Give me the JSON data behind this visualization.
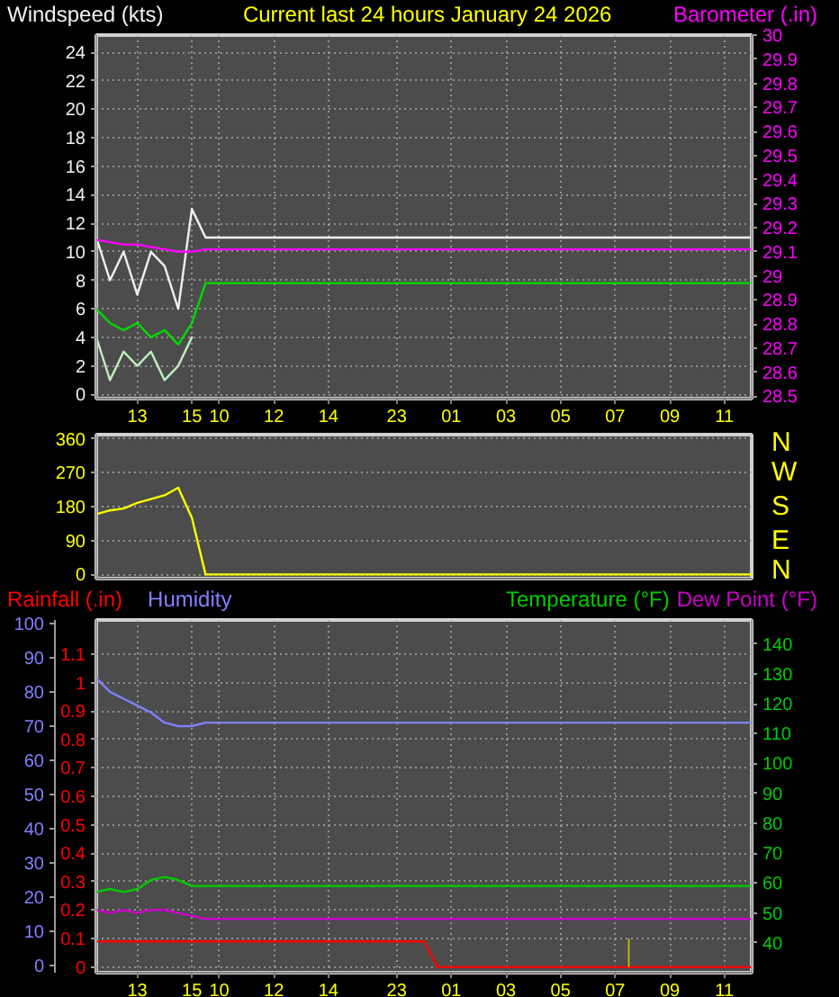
{
  "chart_data": [
    {
      "type": "line",
      "title": "Current last 24 hours January 24 2026",
      "ylabel": "Windspeed (kts)",
      "y2label": "Barometer (.in)",
      "categories": [
        null,
        null,
        null,
        "13",
        null,
        null,
        null,
        "15",
        null,
        "10",
        null,
        null,
        null,
        "12",
        null,
        null,
        null,
        "14",
        null,
        null,
        null,
        null,
        "23",
        null,
        null,
        null,
        "01",
        null,
        null,
        null,
        "03",
        null,
        null,
        null,
        "05",
        null,
        null,
        null,
        "07",
        null,
        null,
        null,
        "09",
        null,
        null,
        null,
        "11",
        null,
        null
      ],
      "ylim": [
        -0.3,
        25.2
      ],
      "yticks": [
        0,
        2,
        4,
        6,
        8,
        10,
        12,
        14,
        16,
        18,
        20,
        22,
        24
      ],
      "y2lim": [
        28.49,
        30.0
      ],
      "y2ticks": [
        28.5,
        28.6,
        28.7,
        28.8,
        28.9,
        29,
        29.1,
        29.2,
        29.3,
        29.4,
        29.5,
        29.6,
        29.7,
        29.8,
        29.9,
        30
      ],
      "grid": true,
      "series": [
        {
          "color": "#f0f0f0",
          "values": [
            11,
            8,
            10,
            7,
            10,
            9,
            6,
            13,
            11,
            11,
            11,
            11,
            11,
            11,
            11,
            11,
            11,
            11,
            11,
            11,
            11,
            11,
            11,
            11,
            11,
            11,
            11,
            11,
            11,
            11,
            11,
            11,
            11,
            11,
            11,
            11,
            11,
            11,
            11,
            11,
            11,
            11,
            11,
            11,
            11,
            11,
            11,
            11,
            11
          ]
        },
        {
          "color": "#c0f0c0",
          "values": [
            4,
            1,
            3,
            2,
            3,
            1,
            2,
            4,
            null,
            null,
            null,
            null,
            null,
            null,
            null,
            null,
            null,
            null,
            null,
            null,
            null,
            null,
            null,
            null,
            null,
            null,
            null,
            null,
            null,
            null,
            null,
            null,
            null,
            null,
            null,
            null,
            null,
            null,
            null,
            null,
            null,
            null,
            null,
            null,
            null,
            null,
            null,
            null,
            null
          ]
        },
        {
          "color": "#00dd00",
          "values": [
            6,
            5,
            4.5,
            5,
            4,
            4.5,
            3.5,
            5,
            7.8,
            7.8,
            7.8,
            7.8,
            7.8,
            7.8,
            7.8,
            7.8,
            7.8,
            7.8,
            7.8,
            7.8,
            7.8,
            7.8,
            7.8,
            7.8,
            7.8,
            7.8,
            7.8,
            7.8,
            7.8,
            7.8,
            7.8,
            7.8,
            7.8,
            7.8,
            7.8,
            7.8,
            7.8,
            7.8,
            7.8,
            7.8,
            7.8,
            7.8,
            7.8,
            7.8,
            7.8,
            7.8,
            7.8,
            7.8,
            7.8
          ]
        },
        {
          "color": "#ff00ff",
          "axis": "y2",
          "values": [
            29.15,
            29.14,
            29.13,
            29.13,
            29.12,
            29.11,
            29.1,
            29.1,
            29.11,
            29.11,
            29.11,
            29.11,
            29.11,
            29.11,
            29.11,
            29.11,
            29.11,
            29.11,
            29.11,
            29.11,
            29.11,
            29.11,
            29.11,
            29.11,
            29.11,
            29.11,
            29.11,
            29.11,
            29.11,
            29.11,
            29.11,
            29.11,
            29.11,
            29.11,
            29.11,
            29.11,
            29.11,
            29.11,
            29.11,
            29.11,
            29.11,
            29.11,
            29.11,
            29.11,
            29.11,
            29.11,
            29.11,
            29.11,
            29.11
          ]
        }
      ]
    },
    {
      "type": "line",
      "tick_labels": "y",
      "annotations": [
        "N",
        "W",
        "S",
        "E",
        "N"
      ],
      "categories": [
        null,
        null,
        null,
        null,
        null,
        null,
        null,
        null,
        null,
        null,
        null,
        null,
        null,
        null,
        null,
        null,
        null,
        null,
        null,
        null,
        null,
        null,
        null,
        null,
        null,
        null,
        null,
        null,
        null,
        null,
        null,
        null,
        null,
        null,
        null,
        null,
        null,
        null,
        null,
        null,
        null,
        null,
        null,
        null,
        null,
        null,
        null,
        null,
        null
      ],
      "ylim": [
        -11,
        371
      ],
      "yticks": [
        0,
        90,
        180,
        270,
        360
      ],
      "grid": true,
      "series": [
        {
          "color": "#ffff00",
          "values": [
            160,
            170,
            175,
            190,
            200,
            210,
            230,
            150,
            0,
            0,
            0,
            0,
            0,
            0,
            0,
            0,
            0,
            0,
            0,
            0,
            0,
            0,
            0,
            0,
            0,
            0,
            0,
            0,
            0,
            0,
            0,
            0,
            0,
            0,
            0,
            0,
            0,
            0,
            0,
            0,
            0,
            0,
            0,
            0,
            0,
            0,
            0,
            0,
            0
          ]
        }
      ]
    },
    {
      "type": "line",
      "categories": [
        null,
        null,
        null,
        "13",
        null,
        null,
        null,
        "15",
        null,
        "10",
        null,
        null,
        null,
        "12",
        null,
        null,
        null,
        "14",
        null,
        null,
        null,
        null,
        "23",
        null,
        null,
        null,
        "01",
        null,
        null,
        null,
        "03",
        null,
        null,
        null,
        "05",
        null,
        null,
        null,
        "07",
        null,
        null,
        null,
        "09",
        null,
        null,
        null,
        "11",
        null,
        null
      ],
      "ylim": [
        -0.02,
        1.22
      ],
      "yticks": [
        0,
        0.1,
        0.2,
        0.3,
        0.4,
        0.5,
        0.6,
        0.7,
        0.8,
        0.9,
        1,
        1.1
      ],
      "y2lim": [
        30,
        148
      ],
      "y2ticks": [
        40,
        50,
        60,
        70,
        80,
        90,
        100,
        110,
        120,
        130,
        140
      ],
      "y3lim": [
        -2,
        101
      ],
      "y3ticks": [
        0,
        10,
        20,
        30,
        40,
        50,
        60,
        70,
        80,
        90,
        100
      ],
      "grid": true,
      "series": [
        {
          "name": "Rainfall (.in)",
          "color": "#ff0000",
          "values": [
            0.09,
            0.09,
            0.09,
            0.09,
            0.09,
            0.09,
            0.09,
            0.09,
            0.09,
            0.09,
            0.09,
            0.09,
            0.09,
            0.09,
            0.09,
            0.09,
            0.09,
            0.09,
            0.09,
            0.09,
            0.09,
            0.09,
            0.09,
            0.09,
            0.09,
            0,
            0,
            0,
            0,
            0,
            0,
            0,
            0,
            0,
            0,
            0,
            0,
            0,
            0,
            0,
            0,
            0,
            0,
            0,
            0,
            0,
            0,
            0,
            0
          ]
        },
        {
          "name": "Humidity",
          "color": "#8080ff",
          "axis": "y3",
          "values": [
            84,
            80,
            78,
            76,
            74,
            71,
            70,
            70,
            71,
            71,
            71,
            71,
            71,
            71,
            71,
            71,
            71,
            71,
            71,
            71,
            71,
            71,
            71,
            71,
            71,
            71,
            71,
            71,
            71,
            71,
            71,
            71,
            71,
            71,
            71,
            71,
            71,
            71,
            71,
            71,
            71,
            71,
            71,
            71,
            71,
            71,
            71,
            71,
            71
          ]
        },
        {
          "name": "Temperature (°F)",
          "color": "#00cc00",
          "axis": "y2",
          "values": [
            57,
            58,
            57,
            58,
            61,
            62,
            61,
            59,
            59,
            59,
            59,
            59,
            59,
            59,
            59,
            59,
            59,
            59,
            59,
            59,
            59,
            59,
            59,
            59,
            59,
            59,
            59,
            59,
            59,
            59,
            59,
            59,
            59,
            59,
            59,
            59,
            59,
            59,
            59,
            59,
            59,
            59,
            59,
            59,
            59,
            59,
            59,
            59,
            59
          ]
        },
        {
          "name": "Dew Point (°F)",
          "color": "#cc00cc",
          "axis": "y2",
          "values": [
            51,
            50,
            51,
            50,
            51,
            51,
            50,
            49,
            48,
            48,
            48,
            48,
            48,
            48,
            48,
            48,
            48,
            48,
            48,
            48,
            48,
            48,
            48,
            48,
            48,
            48,
            48,
            48,
            48,
            48,
            48,
            48,
            48,
            48,
            48,
            48,
            48,
            48,
            48,
            48,
            48,
            48,
            48,
            48,
            48,
            48,
            48,
            48,
            48
          ]
        },
        {
          "type": "bar",
          "color": "#c0c000",
          "values": [
            null,
            null,
            null,
            null,
            null,
            null,
            null,
            null,
            null,
            null,
            null,
            null,
            null,
            null,
            null,
            null,
            null,
            null,
            null,
            null,
            null,
            null,
            null,
            null,
            null,
            null,
            null,
            null,
            null,
            null,
            null,
            null,
            null,
            null,
            null,
            null,
            null,
            null,
            null,
            0.1,
            null,
            null,
            null,
            null,
            null,
            null,
            null,
            null,
            null
          ]
        }
      ]
    }
  ]
}
